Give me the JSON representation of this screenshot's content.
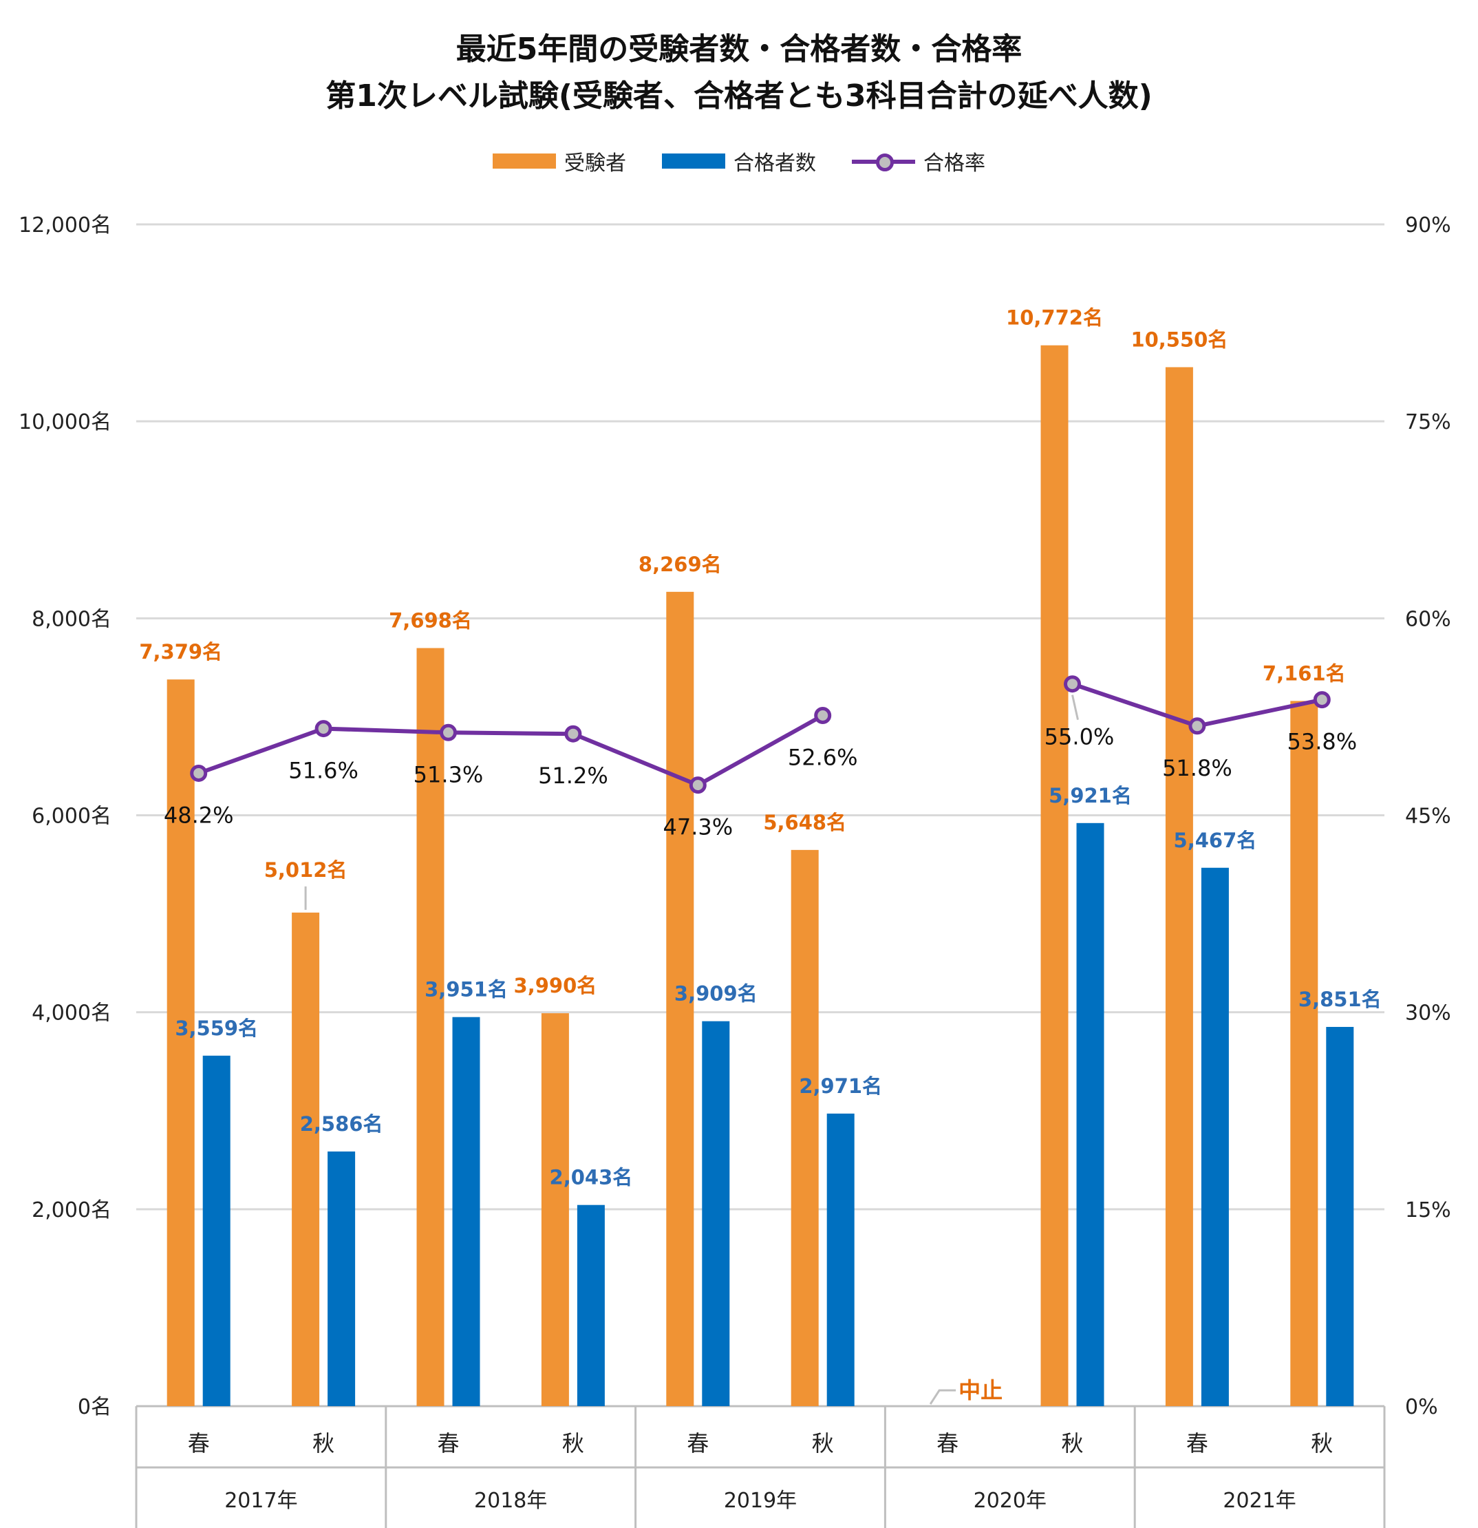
{
  "chart_data": {
    "type": "bar",
    "title": [
      "最近5年間の受験者数・合格者数・合格率",
      "第1次レベル試験(受験者、合格者とも3科目合計の延べ人数)"
    ],
    "legend": [
      "受験者",
      "合格者数",
      "合格率"
    ],
    "legend_position": "top-center",
    "grid": true,
    "years": [
      "2017年",
      "2018年",
      "2019年",
      "2020年",
      "2021年"
    ],
    "categories": [
      "春",
      "秋",
      "春",
      "秋",
      "春",
      "秋",
      "春",
      "秋",
      "春",
      "秋"
    ],
    "series": [
      {
        "name": "受験者",
        "type": "bar",
        "axis": "left",
        "values": [
          7379,
          5012,
          7698,
          3990,
          8269,
          5648,
          0,
          10772,
          10550,
          7161
        ],
        "labels": [
          "7,379名",
          "5,012名",
          "7,698名",
          "3,990名",
          "8,269名",
          "5,648名",
          "中止",
          "10,772名",
          "10,550名",
          "7,161名"
        ]
      },
      {
        "name": "合格者数",
        "type": "bar",
        "axis": "left",
        "values": [
          3559,
          2586,
          3951,
          2043,
          3909,
          2971,
          null,
          5921,
          5467,
          3851
        ],
        "labels": [
          "3,559名",
          "2,586名",
          "3,951名",
          "2,043名",
          "3,909名",
          "2,971名",
          "",
          "5,921名",
          "5,467名",
          "3,851名"
        ]
      },
      {
        "name": "合格率",
        "type": "line",
        "axis": "right",
        "values": [
          48.2,
          51.6,
          51.3,
          51.2,
          47.3,
          52.6,
          null,
          55.0,
          51.8,
          53.8
        ],
        "labels": [
          "48.2%",
          "51.6%",
          "51.3%",
          "51.2%",
          "47.3%",
          "52.6%",
          "",
          "55.0%",
          "51.8%",
          "53.8%"
        ]
      }
    ],
    "ylim": [
      0,
      12000
    ],
    "yticks": [
      "0名",
      "2,000名",
      "4,000名",
      "6,000名",
      "8,000名",
      "10,000名",
      "12,000名"
    ],
    "y2lim": [
      0,
      90
    ],
    "y2ticks": [
      "0%",
      "15%",
      "30%",
      "45%",
      "60%",
      "75%",
      "90%"
    ]
  },
  "colors": {
    "exam": "#F09334",
    "pass": "#0070C0",
    "rate": "#7030A0",
    "marker": "#BFBFBF",
    "exam_label": "#E46C0A",
    "pass_label": "#2E6DB4",
    "grid": "#D9D9D9",
    "axis": "#BFBFBF"
  }
}
